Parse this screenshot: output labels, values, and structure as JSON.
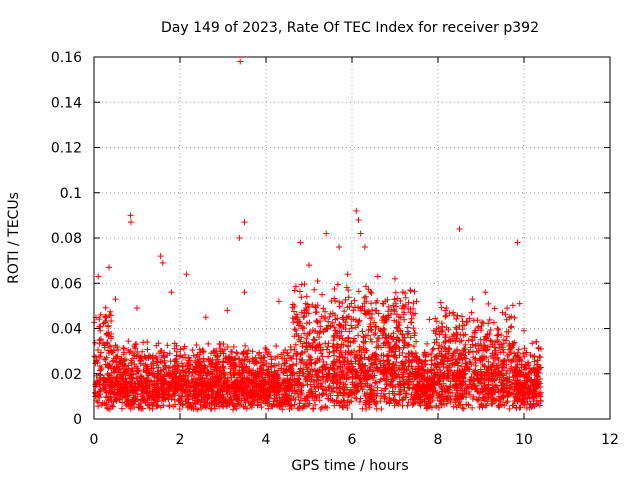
{
  "chart_data": {
    "type": "scatter",
    "title": "Day 149 of 2023, Rate Of TEC Index for receiver p392",
    "xlabel": "GPS time / hours",
    "ylabel": "ROTI / TECUs",
    "xlim": [
      0,
      12
    ],
    "ylim": [
      0,
      0.16
    ],
    "xticks": [
      0,
      2,
      4,
      6,
      8,
      10,
      12
    ],
    "yticks": [
      0,
      0.02,
      0.04,
      0.06,
      0.08,
      0.1,
      0.12,
      0.14,
      0.16
    ],
    "xtick_labels": [
      "0",
      "2",
      "4",
      "6",
      "8",
      "10",
      "12"
    ],
    "ytick_labels": [
      "0",
      "0.02",
      "0.04",
      "0.06",
      "0.08",
      "0.1",
      "0.12",
      "0.14",
      "0.16"
    ],
    "grid": true,
    "marker": "+",
    "color": "#ff0000",
    "series": [
      {
        "name": "ROTI",
        "points": [
          [
            0.85,
            0.09
          ],
          [
            0.86,
            0.087
          ],
          [
            1.55,
            0.072
          ],
          [
            1.6,
            0.069
          ],
          [
            1.8,
            0.056
          ],
          [
            2.15,
            0.064
          ],
          [
            3.4,
            0.158
          ],
          [
            3.38,
            0.08
          ],
          [
            3.5,
            0.087
          ],
          [
            3.5,
            0.056
          ],
          [
            4.8,
            0.078
          ],
          [
            5.4,
            0.082
          ],
          [
            5.7,
            0.076
          ],
          [
            6.1,
            0.092
          ],
          [
            6.15,
            0.088
          ],
          [
            6.2,
            0.082
          ],
          [
            6.3,
            0.076
          ],
          [
            7.0,
            0.062
          ],
          [
            8.5,
            0.084
          ],
          [
            9.85,
            0.078
          ],
          [
            9.1,
            0.056
          ],
          [
            9.9,
            0.051
          ],
          [
            0.35,
            0.067
          ],
          [
            0.1,
            0.063
          ],
          [
            0.5,
            0.053
          ],
          [
            1.0,
            0.049
          ],
          [
            2.6,
            0.045
          ],
          [
            3.1,
            0.048
          ],
          [
            4.3,
            0.052
          ],
          [
            5.0,
            0.068
          ],
          [
            5.2,
            0.061
          ],
          [
            5.9,
            0.064
          ],
          [
            6.6,
            0.063
          ],
          [
            7.5,
            0.052
          ],
          [
            8.2,
            0.049
          ],
          [
            8.8,
            0.053
          ],
          [
            9.5,
            0.047
          ],
          [
            10.0,
            0.039
          ],
          [
            10.3,
            0.024
          ],
          [
            7.8,
            0.044
          ]
        ]
      }
    ]
  }
}
